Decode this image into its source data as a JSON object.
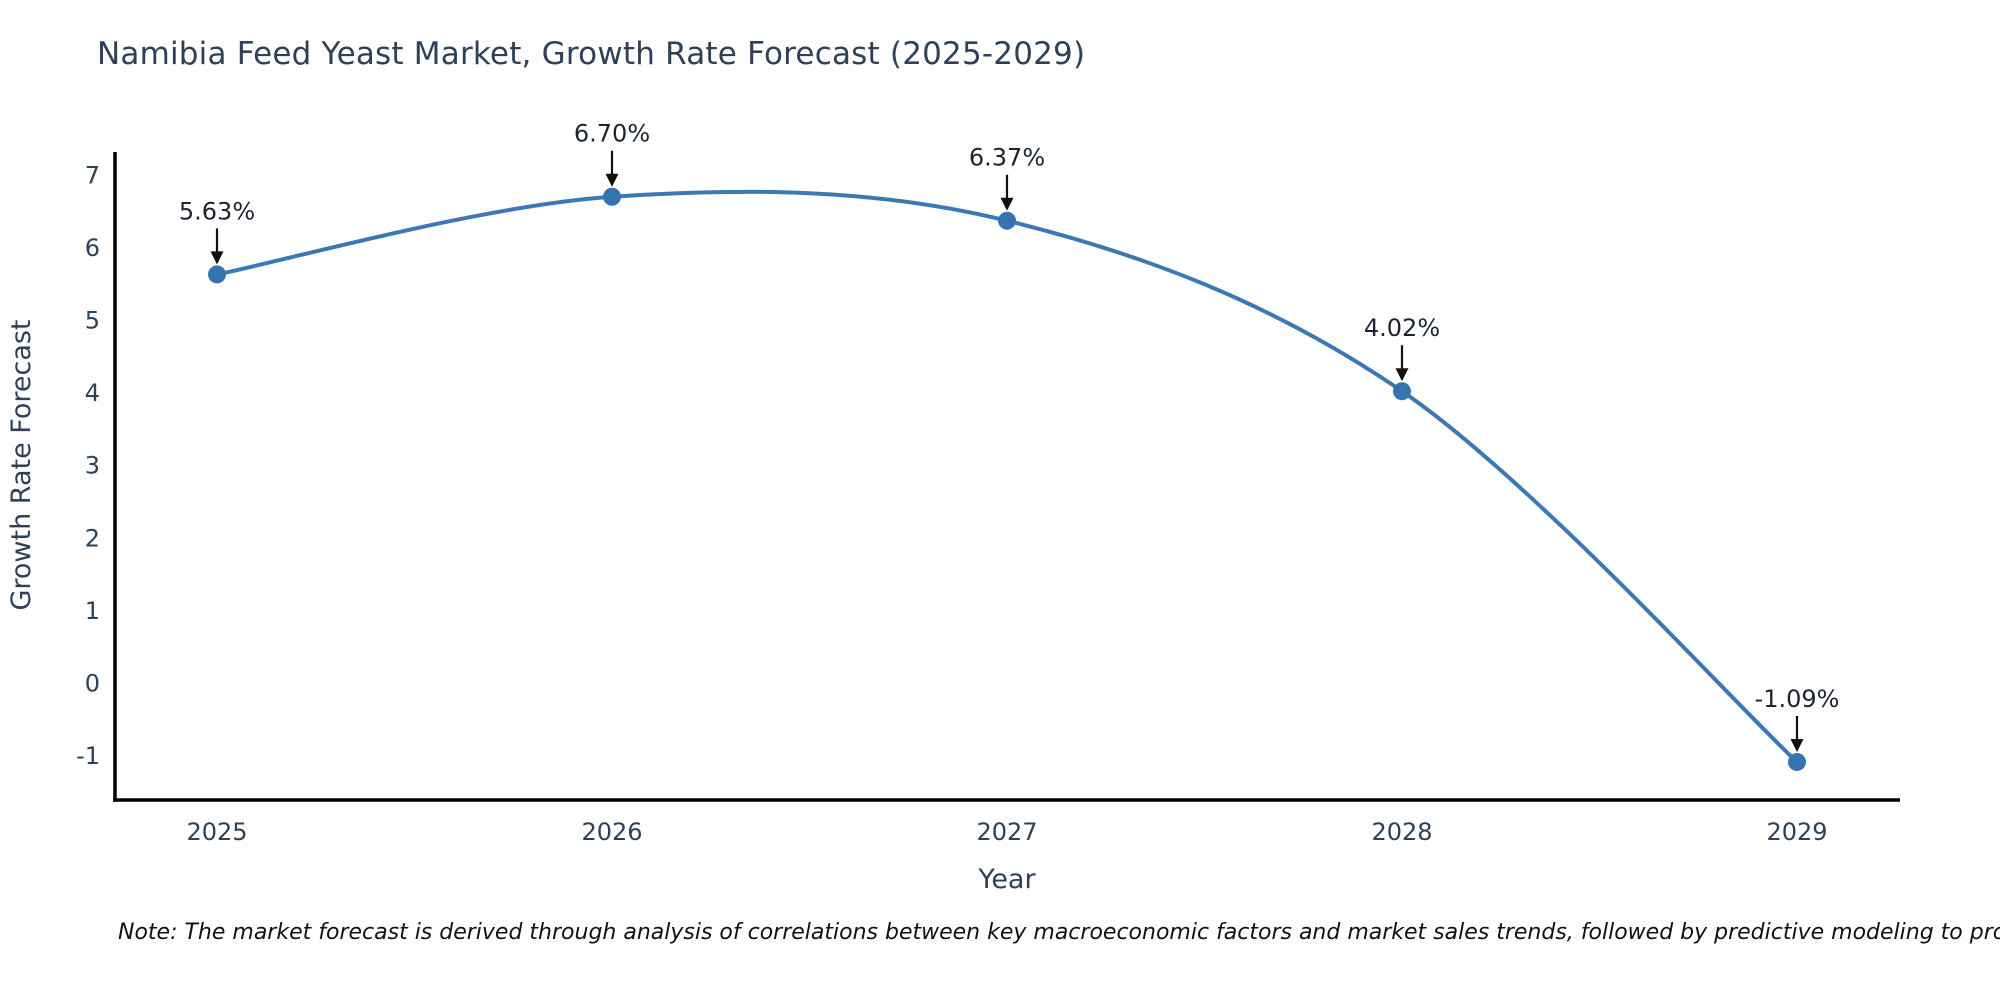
{
  "title": "Namibia Feed Yeast Market, Growth Rate Forecast (2025-2029)",
  "note": "Note: The market forecast is derived through analysis of correlations between key macroeconomic factors and market sales trends, followed by predictive modeling to project future sales",
  "chart_data": {
    "type": "line",
    "title": "Namibia Feed Yeast Market, Growth Rate Forecast (2025-2029)",
    "xlabel": "Year",
    "ylabel": "Growth Rate Forecast",
    "categories": [
      "2025",
      "2026",
      "2027",
      "2028",
      "2029"
    ],
    "values": [
      5.63,
      6.7,
      6.37,
      4.02,
      -1.09
    ],
    "point_labels": [
      "5.63%",
      "6.70%",
      "6.37%",
      "4.02%",
      "-1.09%"
    ],
    "yticks": [
      7,
      6,
      5,
      4,
      3,
      2,
      1,
      0,
      -1
    ],
    "ylim": [
      -1.62,
      7.32
    ],
    "grid": false,
    "legend": "none",
    "curve": "spline",
    "line_color": "#3c79b4",
    "marker_color": "#3674b0",
    "axis_color": "#000000",
    "text_color": "#2e4157",
    "annotation_color": "#1c2430",
    "background_color": "#ffffff"
  }
}
